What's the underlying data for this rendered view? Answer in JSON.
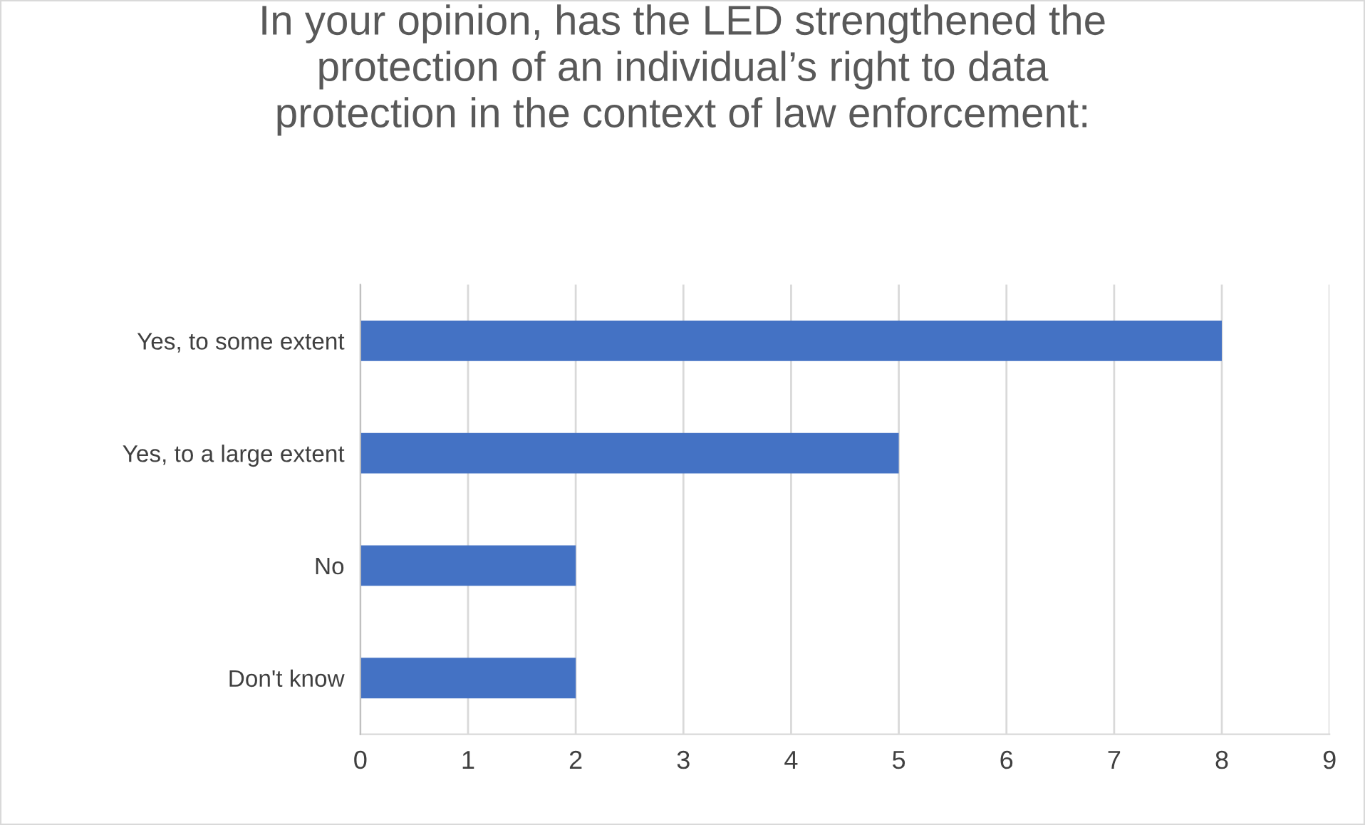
{
  "chart_data": {
    "type": "bar",
    "orientation": "horizontal",
    "title": "In your opinion, has the LED strengthened the\nprotection of an individual’s right to data\nprotection in the context of law enforcement:",
    "categories": [
      "Yes, to some extent",
      "Yes, to a large extent",
      "No",
      "Don't know"
    ],
    "values": [
      8,
      5,
      2,
      2
    ],
    "color": "#4472c4",
    "xlim": [
      0,
      9
    ],
    "xticks": [
      0,
      1,
      2,
      3,
      4,
      5,
      6,
      7,
      8,
      9
    ],
    "grid": "x",
    "legend": false
  }
}
